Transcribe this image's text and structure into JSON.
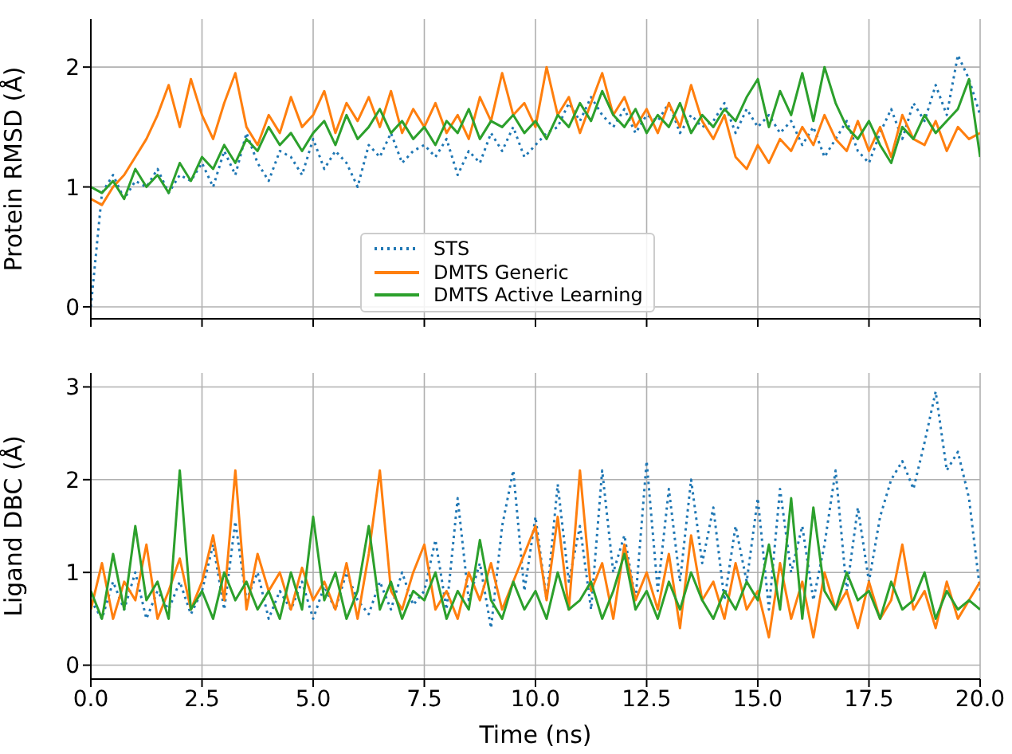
{
  "chart_data": [
    {
      "type": "line",
      "ylabel": "Protein RMSD (Å)",
      "legend": "bottom",
      "grid": true,
      "tick_labels": "y",
      "marker": "none",
      "x": [
        0,
        0.25,
        0.5,
        0.75,
        1,
        1.25,
        1.5,
        1.75,
        2,
        2.25,
        2.5,
        2.75,
        3,
        3.25,
        3.5,
        3.75,
        4,
        4.25,
        4.5,
        4.75,
        5,
        5.25,
        5.5,
        5.75,
        6,
        6.25,
        6.5,
        6.75,
        7,
        7.25,
        7.5,
        7.75,
        8,
        8.25,
        8.5,
        8.75,
        9,
        9.25,
        9.5,
        9.75,
        10,
        10.25,
        10.5,
        10.75,
        11,
        11.25,
        11.5,
        11.75,
        12,
        12.25,
        12.5,
        12.75,
        13,
        13.25,
        13.5,
        13.75,
        14,
        14.25,
        14.5,
        14.75,
        15,
        15.25,
        15.5,
        15.75,
        16,
        16.25,
        16.5,
        16.75,
        17,
        17.25,
        17.5,
        17.75,
        18,
        18.25,
        18.5,
        18.75,
        19,
        19.25,
        19.5,
        19.75,
        20
      ],
      "xlim": [
        0,
        20
      ],
      "xticks": [
        0,
        2.5,
        5,
        7.5,
        10,
        12.5,
        15,
        17.5,
        20
      ],
      "ylim": [
        -0.1,
        2.4
      ],
      "yticks": [
        0,
        1,
        2
      ],
      "series": [
        {
          "name": "STS",
          "color": "#1f77b4",
          "line_style": "dotted",
          "values": [
            0,
            0.95,
            1.1,
            0.9,
            1.05,
            1.0,
            1.15,
            0.95,
            1.1,
            1.05,
            1.2,
            1.0,
            1.3,
            1.1,
            1.45,
            1.2,
            1.05,
            1.3,
            1.25,
            1.1,
            1.4,
            1.15,
            1.3,
            1.2,
            1.0,
            1.35,
            1.25,
            1.45,
            1.2,
            1.3,
            1.35,
            1.25,
            1.4,
            1.1,
            1.3,
            1.2,
            1.45,
            1.3,
            1.5,
            1.25,
            1.35,
            1.45,
            1.5,
            1.7,
            1.55,
            1.75,
            1.6,
            1.5,
            1.65,
            1.45,
            1.6,
            1.55,
            1.7,
            1.45,
            1.6,
            1.5,
            1.55,
            1.7,
            1.45,
            1.65,
            1.5,
            1.6,
            1.45,
            1.55,
            1.35,
            1.5,
            1.25,
            1.4,
            1.55,
            1.3,
            1.2,
            1.45,
            1.65,
            1.4,
            1.7,
            1.55,
            1.85,
            1.6,
            2.1,
            1.9,
            1.6
          ]
        },
        {
          "name": "DMTS Generic",
          "color": "#ff7f0e",
          "line_style": "solid",
          "values": [
            0.9,
            0.85,
            1.0,
            1.1,
            1.25,
            1.4,
            1.6,
            1.85,
            1.5,
            1.9,
            1.6,
            1.4,
            1.7,
            1.95,
            1.5,
            1.35,
            1.6,
            1.45,
            1.75,
            1.5,
            1.6,
            1.8,
            1.45,
            1.7,
            1.55,
            1.75,
            1.5,
            1.8,
            1.45,
            1.65,
            1.5,
            1.7,
            1.45,
            1.6,
            1.4,
            1.75,
            1.55,
            1.95,
            1.6,
            1.7,
            1.5,
            2.0,
            1.6,
            1.75,
            1.45,
            1.7,
            1.95,
            1.6,
            1.75,
            1.5,
            1.65,
            1.45,
            1.7,
            1.5,
            1.85,
            1.55,
            1.4,
            1.6,
            1.25,
            1.15,
            1.35,
            1.2,
            1.4,
            1.3,
            1.5,
            1.35,
            1.6,
            1.4,
            1.3,
            1.55,
            1.3,
            1.5,
            1.25,
            1.6,
            1.4,
            1.35,
            1.55,
            1.3,
            1.5,
            1.4,
            1.45
          ]
        },
        {
          "name": "DMTS Active Learning",
          "color": "#2ca02c",
          "line_style": "solid",
          "values": [
            1.0,
            0.95,
            1.05,
            0.9,
            1.15,
            1.0,
            1.1,
            0.95,
            1.2,
            1.05,
            1.25,
            1.15,
            1.35,
            1.2,
            1.4,
            1.3,
            1.5,
            1.35,
            1.45,
            1.3,
            1.45,
            1.55,
            1.35,
            1.6,
            1.4,
            1.5,
            1.65,
            1.45,
            1.55,
            1.4,
            1.5,
            1.35,
            1.55,
            1.45,
            1.65,
            1.4,
            1.55,
            1.5,
            1.6,
            1.45,
            1.55,
            1.4,
            1.6,
            1.5,
            1.7,
            1.55,
            1.8,
            1.6,
            1.5,
            1.65,
            1.45,
            1.6,
            1.5,
            1.7,
            1.45,
            1.6,
            1.5,
            1.65,
            1.55,
            1.75,
            1.9,
            1.5,
            1.8,
            1.6,
            1.95,
            1.55,
            2.0,
            1.7,
            1.5,
            1.4,
            1.55,
            1.35,
            1.2,
            1.5,
            1.4,
            1.6,
            1.45,
            1.55,
            1.65,
            1.9,
            1.25
          ]
        }
      ]
    },
    {
      "type": "line",
      "ylabel": "Ligand DBC (Å)",
      "xlabel": "Time (ns)",
      "grid": true,
      "marker": "none",
      "x": [
        0,
        0.25,
        0.5,
        0.75,
        1,
        1.25,
        1.5,
        1.75,
        2,
        2.25,
        2.5,
        2.75,
        3,
        3.25,
        3.5,
        3.75,
        4,
        4.25,
        4.5,
        4.75,
        5,
        5.25,
        5.5,
        5.75,
        6,
        6.25,
        6.5,
        6.75,
        7,
        7.25,
        7.5,
        7.75,
        8,
        8.25,
        8.5,
        8.75,
        9,
        9.25,
        9.5,
        9.75,
        10,
        10.25,
        10.5,
        10.75,
        11,
        11.25,
        11.5,
        11.75,
        12,
        12.25,
        12.5,
        12.75,
        13,
        13.25,
        13.5,
        13.75,
        14,
        14.25,
        14.5,
        14.75,
        15,
        15.25,
        15.5,
        15.75,
        16,
        16.25,
        16.5,
        16.75,
        17,
        17.25,
        17.5,
        17.75,
        18,
        18.25,
        18.5,
        18.75,
        19,
        19.25,
        19.5,
        19.75,
        20
      ],
      "xlim": [
        0,
        20
      ],
      "xticks": [
        {
          "value": 0,
          "label": "0.0"
        },
        {
          "value": 2.5,
          "label": "2.5"
        },
        {
          "value": 5,
          "label": "5.0"
        },
        {
          "value": 7.5,
          "label": "7.5"
        },
        {
          "value": 10,
          "label": "10.0"
        },
        {
          "value": 12.5,
          "label": "12.5"
        },
        {
          "value": 15,
          "label": "15.0"
        },
        {
          "value": 17.5,
          "label": "17.5"
        },
        {
          "value": 20,
          "label": "20.0"
        }
      ],
      "ylim": [
        -0.15,
        3.15
      ],
      "yticks": [
        0,
        1,
        2,
        3
      ],
      "series": [
        {
          "color": "#1f77b4",
          "line_style": "dotted",
          "values": [
            0.7,
            0.5,
            0.9,
            0.6,
            1.0,
            0.5,
            0.8,
            0.6,
            0.9,
            0.55,
            0.8,
            1.3,
            0.6,
            1.55,
            0.7,
            1.0,
            0.5,
            0.8,
            0.6,
            0.9,
            0.5,
            0.85,
            0.6,
            1.0,
            0.7,
            0.55,
            0.9,
            0.6,
            1.0,
            0.65,
            0.8,
            1.35,
            0.6,
            1.8,
            0.7,
            1.1,
            0.4,
            1.5,
            2.1,
            0.8,
            1.6,
            0.7,
            1.95,
            0.9,
            1.5,
            0.6,
            2.1,
            1.0,
            1.4,
            0.7,
            2.2,
            0.8,
            1.9,
            0.9,
            2.0,
            1.1,
            1.7,
            0.7,
            1.5,
            0.9,
            1.8,
            0.6,
            1.9,
            1.0,
            1.5,
            0.7,
            1.3,
            2.1,
            0.8,
            1.7,
            0.9,
            1.6,
            2.0,
            2.2,
            1.9,
            2.4,
            2.95,
            2.1,
            2.3,
            1.8,
            0.8
          ]
        },
        {
          "color": "#ff7f0e",
          "line_style": "solid",
          "values": [
            0.6,
            1.1,
            0.5,
            0.9,
            0.7,
            1.3,
            0.5,
            0.8,
            1.15,
            0.6,
            0.9,
            1.4,
            0.7,
            2.1,
            0.6,
            1.2,
            0.8,
            1.0,
            0.6,
            1.05,
            0.7,
            0.9,
            0.6,
            1.1,
            0.5,
            1.2,
            2.1,
            0.8,
            0.6,
            1.0,
            1.3,
            0.6,
            0.8,
            0.5,
            1.0,
            0.7,
            1.1,
            0.6,
            0.9,
            1.2,
            1.5,
            0.7,
            1.6,
            0.6,
            2.1,
            0.8,
            1.1,
            0.5,
            1.3,
            0.7,
            1.0,
            0.6,
            1.2,
            0.4,
            1.4,
            0.7,
            0.9,
            0.5,
            1.1,
            0.6,
            0.8,
            0.3,
            1.1,
            0.5,
            0.9,
            0.3,
            1.0,
            0.6,
            0.8,
            0.4,
            0.9,
            0.5,
            0.7,
            1.3,
            0.6,
            0.8,
            0.4,
            0.9,
            0.5,
            0.7,
            0.9
          ]
        },
        {
          "color": "#2ca02c",
          "line_style": "solid",
          "values": [
            0.8,
            0.5,
            1.2,
            0.6,
            1.5,
            0.7,
            0.9,
            0.5,
            2.1,
            0.6,
            0.8,
            0.5,
            1.0,
            0.7,
            0.9,
            0.6,
            0.8,
            0.5,
            1.0,
            0.6,
            1.6,
            0.7,
            1.0,
            0.5,
            0.8,
            1.5,
            0.6,
            0.9,
            0.5,
            0.8,
            0.7,
            1.0,
            0.5,
            0.8,
            0.6,
            1.35,
            0.7,
            0.5,
            0.9,
            0.6,
            0.8,
            0.5,
            1.0,
            0.6,
            0.7,
            0.9,
            0.5,
            0.8,
            1.2,
            0.6,
            0.8,
            0.5,
            0.9,
            0.6,
            1.0,
            0.7,
            0.5,
            0.8,
            0.6,
            0.9,
            0.7,
            1.3,
            0.6,
            1.8,
            0.5,
            1.7,
            0.8,
            0.6,
            1.0,
            0.7,
            0.8,
            0.5,
            0.9,
            0.6,
            0.7,
            1.0,
            0.5,
            0.8,
            0.6,
            0.7,
            0.6
          ]
        }
      ]
    }
  ]
}
